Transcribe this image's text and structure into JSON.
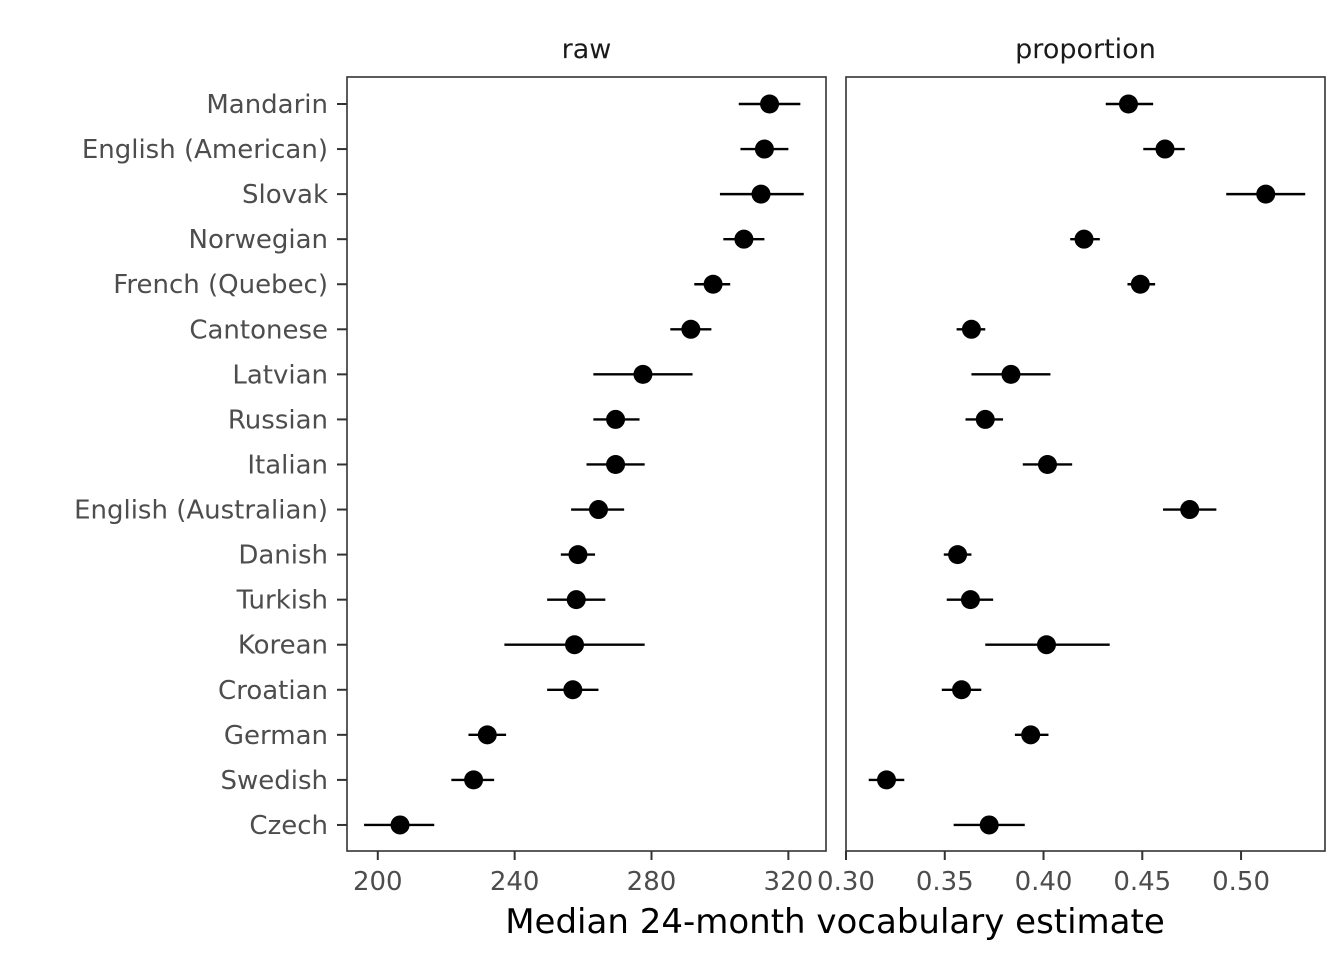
{
  "chart_data": {
    "type": "scatter",
    "subtype": "dot-with-error-bars, faceted",
    "xlabel": "Median 24-month vocabulary estimate",
    "ylabel": "",
    "languages": [
      "Mandarin",
      "English (American)",
      "Slovak",
      "Norwegian",
      "French (Quebec)",
      "Cantonese",
      "Latvian",
      "Russian",
      "Italian",
      "English (Australian)",
      "Danish",
      "Turkish",
      "Korean",
      "Croatian",
      "German",
      "Swedish",
      "Czech"
    ],
    "facets": [
      {
        "title": "raw",
        "xlim": [
          191,
          331
        ],
        "ticks": [
          200,
          240,
          280,
          320
        ],
        "tick_labels": [
          "200",
          "240",
          "280",
          "320"
        ],
        "points": [
          {
            "language": "Mandarin",
            "value": 314.5,
            "lower": 305.5,
            "upper": 323.5
          },
          {
            "language": "English (American)",
            "value": 313,
            "lower": 306,
            "upper": 320
          },
          {
            "language": "Slovak",
            "value": 312,
            "lower": 300,
            "upper": 324.5
          },
          {
            "language": "Norwegian",
            "value": 307,
            "lower": 301,
            "upper": 313
          },
          {
            "language": "French (Quebec)",
            "value": 298,
            "lower": 292.5,
            "upper": 303
          },
          {
            "language": "Cantonese",
            "value": 291.5,
            "lower": 285.5,
            "upper": 297.5
          },
          {
            "language": "Latvian",
            "value": 277.5,
            "lower": 263,
            "upper": 292
          },
          {
            "language": "Russian",
            "value": 269.5,
            "lower": 263,
            "upper": 276.5
          },
          {
            "language": "Italian",
            "value": 269.5,
            "lower": 261,
            "upper": 278
          },
          {
            "language": "English (Australian)",
            "value": 264.5,
            "lower": 256.5,
            "upper": 272
          },
          {
            "language": "Danish",
            "value": 258.5,
            "lower": 253.5,
            "upper": 263.5
          },
          {
            "language": "Turkish",
            "value": 258,
            "lower": 249.5,
            "upper": 266.5
          },
          {
            "language": "Korean",
            "value": 257.5,
            "lower": 237,
            "upper": 278
          },
          {
            "language": "Croatian",
            "value": 257,
            "lower": 249.5,
            "upper": 264.5
          },
          {
            "language": "German",
            "value": 232,
            "lower": 226.5,
            "upper": 237.5
          },
          {
            "language": "Swedish",
            "value": 228,
            "lower": 221.5,
            "upper": 234
          },
          {
            "language": "Czech",
            "value": 206.5,
            "lower": 196,
            "upper": 216.5
          }
        ]
      },
      {
        "title": "proportion",
        "xlim": [
          0.3,
          0.5425
        ],
        "ticks": [
          0.3,
          0.35,
          0.4,
          0.45,
          0.5
        ],
        "tick_labels": [
          "0.30",
          "0.35",
          "0.40",
          "0.45",
          "0.50"
        ],
        "points": [
          {
            "language": "Mandarin",
            "value": 0.443,
            "lower": 0.4315,
            "upper": 0.4555
          },
          {
            "language": "English (American)",
            "value": 0.4615,
            "lower": 0.4505,
            "upper": 0.4715
          },
          {
            "language": "Slovak",
            "value": 0.5125,
            "lower": 0.4925,
            "upper": 0.5325
          },
          {
            "language": "Norwegian",
            "value": 0.4205,
            "lower": 0.4135,
            "upper": 0.4285
          },
          {
            "language": "French (Quebec)",
            "value": 0.449,
            "lower": 0.4425,
            "upper": 0.4565
          },
          {
            "language": "Cantonese",
            "value": 0.3635,
            "lower": 0.356,
            "upper": 0.3705
          },
          {
            "language": "Latvian",
            "value": 0.3835,
            "lower": 0.3635,
            "upper": 0.4035
          },
          {
            "language": "Russian",
            "value": 0.3705,
            "lower": 0.3605,
            "upper": 0.3795
          },
          {
            "language": "Italian",
            "value": 0.402,
            "lower": 0.3895,
            "upper": 0.4145
          },
          {
            "language": "English (Australian)",
            "value": 0.474,
            "lower": 0.4605,
            "upper": 0.4875
          },
          {
            "language": "Danish",
            "value": 0.3565,
            "lower": 0.3495,
            "upper": 0.3635
          },
          {
            "language": "Turkish",
            "value": 0.363,
            "lower": 0.351,
            "upper": 0.3745
          },
          {
            "language": "Korean",
            "value": 0.4015,
            "lower": 0.3705,
            "upper": 0.4335
          },
          {
            "language": "Croatian",
            "value": 0.3585,
            "lower": 0.3485,
            "upper": 0.3685
          },
          {
            "language": "German",
            "value": 0.3935,
            "lower": 0.3855,
            "upper": 0.4025
          },
          {
            "language": "Swedish",
            "value": 0.3205,
            "lower": 0.3115,
            "upper": 0.3295
          },
          {
            "language": "Czech",
            "value": 0.3725,
            "lower": 0.3545,
            "upper": 0.3905
          }
        ]
      }
    ],
    "grid": false,
    "legend": "none",
    "colors": {
      "points": "#000000",
      "panel_border": "#333333",
      "text": "#4d4d4d"
    }
  }
}
